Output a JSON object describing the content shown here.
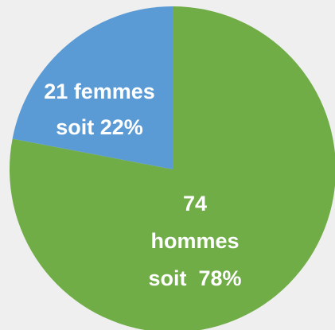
{
  "chart_data": {
    "type": "pie",
    "values": [
      22,
      78
    ],
    "value_labels": [
      [
        "21 femmes",
        "soit 22%"
      ],
      [
        "74",
        "hommes",
        "soit  78%"
      ]
    ],
    "colors": [
      "#5b9bd5",
      "#70ad47"
    ]
  }
}
